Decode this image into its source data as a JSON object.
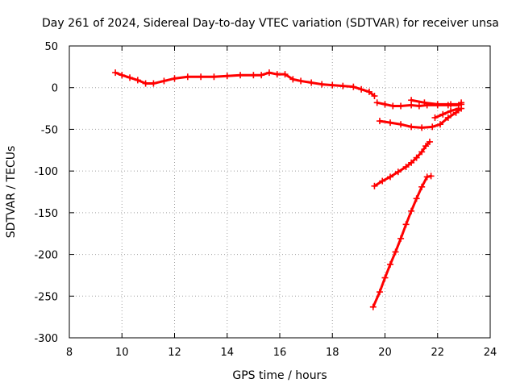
{
  "chart_data": {
    "type": "scatter",
    "title": "Day 261 of 2024, Sidereal Day-to-day VTEC variation (SDTVAR) for receiver unsa",
    "xlabel": "GPS time / hours",
    "ylabel": "SDTVAR / TECUs",
    "xlim": [
      8,
      24
    ],
    "ylim": [
      -300,
      50
    ],
    "xticks": [
      "8",
      "10",
      "12",
      "14",
      "16",
      "18",
      "20",
      "22",
      "24"
    ],
    "yticks": [
      "50",
      "0",
      "-50",
      "-100",
      "-150",
      "-200",
      "-250",
      "-300"
    ],
    "grid": true,
    "color": "#ff0000",
    "series": [
      {
        "name": "main-trace",
        "x": [
          9.75,
          10.0,
          10.3,
          10.6,
          10.9,
          11.2,
          11.6,
          12.0,
          12.5,
          13.0,
          13.5,
          14.0,
          14.5,
          15.0,
          15.3,
          15.6,
          15.9,
          16.2,
          16.5,
          16.8,
          17.2,
          17.6,
          18.0,
          18.4,
          18.8,
          19.1,
          19.4,
          19.6
        ],
        "y": [
          18,
          15,
          12,
          9,
          5,
          5,
          8,
          11,
          13,
          13,
          13,
          14,
          15,
          15,
          15,
          18,
          16,
          16,
          10,
          8,
          6,
          4,
          3,
          2,
          1,
          -2,
          -5,
          -10
        ]
      },
      {
        "name": "upper-arc",
        "x": [
          19.7,
          20.0,
          20.3,
          20.6,
          21.0,
          21.3,
          21.6,
          22.0,
          22.4,
          22.8,
          22.9
        ],
        "y": [
          -18,
          -20,
          -22,
          -22,
          -21,
          -22,
          -21,
          -21,
          -21,
          -21,
          -18
        ]
      },
      {
        "name": "upper-arc-return",
        "x": [
          21.0,
          21.5,
          22.0,
          22.5,
          22.9
        ],
        "y": [
          -15,
          -18,
          -20,
          -20,
          -20
        ]
      },
      {
        "name": "lower-arc",
        "x": [
          19.8,
          20.2,
          20.6,
          21.0,
          21.4,
          21.8,
          22.1,
          22.4,
          22.7,
          22.9
        ],
        "y": [
          -40,
          -42,
          -44,
          -47,
          -48,
          -47,
          -44,
          -36,
          -30,
          -25
        ]
      },
      {
        "name": "lower-arc-return",
        "x": [
          21.9,
          22.2,
          22.5,
          22.8
        ],
        "y": [
          -36,
          -32,
          -28,
          -25
        ]
      },
      {
        "name": "descending-line-1",
        "x": [
          19.6,
          19.9,
          20.2,
          20.5,
          20.8,
          21.0,
          21.2,
          21.4,
          21.55,
          21.7
        ],
        "y": [
          -118,
          -112,
          -107,
          -101,
          -95,
          -90,
          -84,
          -77,
          -70,
          -65
        ]
      },
      {
        "name": "descending-line-2",
        "x": [
          19.55,
          19.8,
          20.0,
          20.2,
          20.4,
          20.6,
          20.8,
          21.0,
          21.2,
          21.4,
          21.6,
          21.75
        ],
        "y": [
          -263,
          -245,
          -228,
          -212,
          -197,
          -181,
          -164,
          -148,
          -133,
          -119,
          -107,
          -106
        ]
      }
    ]
  }
}
